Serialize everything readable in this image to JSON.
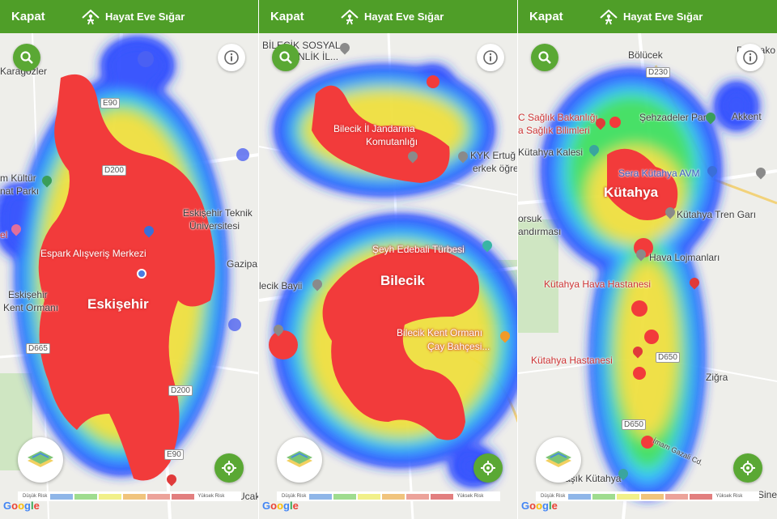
{
  "header": {
    "close_label": "Kapat",
    "brand_label": "Hayat Eve Sığar"
  },
  "legend": {
    "low_label": "Düşük Risk",
    "high_label": "Yüksek Risk",
    "colors": [
      "#8fb6e8",
      "#9fdc8f",
      "#f1f08a",
      "#f0c47d",
      "#eca39a",
      "#e27f7f"
    ]
  },
  "attribution": {
    "provider": "Google"
  },
  "icons": {
    "search": "search-icon",
    "info": "info-icon",
    "locate": "my-location-icon",
    "layers": "map-layers-icon"
  },
  "panels": [
    {
      "city": "Eskişehir",
      "labels": {
        "karagozler": "Karagözler",
        "e90": "E90",
        "kultur": "m Kültür",
        "parki": "nat Parkı",
        "d200a": "D200",
        "teknik1": "Eskişehir Teknik",
        "teknik2": "Üniversitesi",
        "espark": "Espark Alışveriş Merkezi",
        "gazipa": "Gazipa",
        "el": "el",
        "orman1": "Eskişehir",
        "orman2": "Kent Ormanı",
        "city": "Eskişehir",
        "d665": "D665",
        "d200b": "D200",
        "e90b": "E90",
        "ucak": "Ucak"
      }
    },
    {
      "city": "Bilecik",
      "labels": {
        "sosyal1": "BİLECİK SOSYAL",
        "sosyal2": "ENLİK İL...",
        "jandarma1": "Bilecik İl Jandarma",
        "jandarma2": "Komutanlığı",
        "kyk1": "KYK Ertuğ",
        "kyk2": "erkek öğre",
        "turbe": "Şeyh Edebali Türbesi",
        "city": "Bilecik",
        "bayii": "lecik Bayii",
        "kent1": "Bilecik Kent Ormanı",
        "kent2": "Çay Bahçesi..."
      }
    },
    {
      "city": "Kütahya",
      "labels": {
        "bolucek": "Bölücek",
        "parmako": "Parmako",
        "d230": "D230",
        "saglik1": "C Sağlık Bakanlığı",
        "saglik2": "a Sağlık Bilimleri",
        "sehzadeler": "Şehzadeler Parkı",
        "akkent": "Akkent",
        "kale": "Kütahya Kalesi",
        "sera": "Sera Kütahya AVM",
        "city": "Kütahya",
        "tren": "Kütahya Tren Garı",
        "orsuk1": "orsuk",
        "orsuk2": "andırması",
        "hava": "Hava Lojmanları",
        "havahast": "Kütahya Hava Hastanesi",
        "hast": "Kütahya Hastanesi",
        "d650a": "D650",
        "zigra": "Ziğra",
        "d650b": "D650",
        "gazali": "İmam Gazali Cd.",
        "hisar": "H    r",
        "kutahya2": "rmaşık Kütahya",
        "sine": "Sine"
      }
    }
  ]
}
